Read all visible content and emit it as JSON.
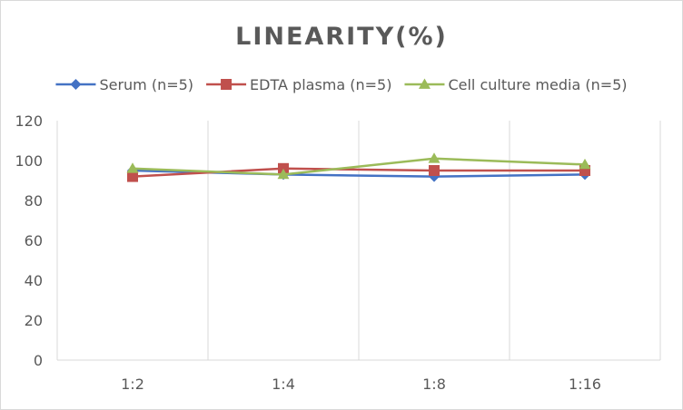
{
  "chart_data": {
    "type": "line",
    "title": "LINEARITY(%)",
    "categories": [
      "1:2",
      "1:4",
      "1:8",
      "1:16"
    ],
    "ylim": [
      0,
      120
    ],
    "yticks": [
      0,
      20,
      40,
      60,
      80,
      100,
      120
    ],
    "grid": {
      "horizontal": false,
      "vertical": true
    },
    "legend": {
      "position": "top"
    },
    "series": [
      {
        "name": "Serum (n=5)",
        "values": [
          95,
          93,
          92,
          93
        ],
        "color": "#4472c4",
        "marker": "diamond"
      },
      {
        "name": "EDTA plasma (n=5)",
        "values": [
          92,
          96,
          95,
          95
        ],
        "color": "#c0504d",
        "marker": "square"
      },
      {
        "name": "Cell culture media (n=5)",
        "values": [
          96,
          93,
          101,
          98
        ],
        "color": "#9bbb59",
        "marker": "triangle"
      }
    ]
  }
}
